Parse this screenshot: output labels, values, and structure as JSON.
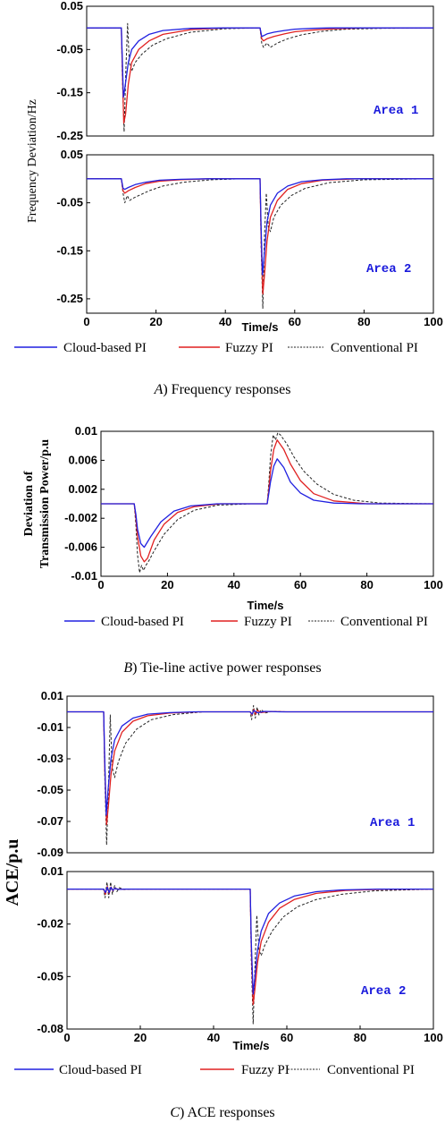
{
  "colors": {
    "cloud": "#2020e0",
    "fuzzy": "#e02020",
    "conventional": "#222222",
    "area_label": "#1a1adc"
  },
  "legend": {
    "cloud": "Cloud-based PI",
    "fuzzy": "Fuzzy PI",
    "conventional": "Conventional PI"
  },
  "captions": {
    "a_letter": "A",
    "a_text": ") Frequency responses",
    "b_letter": "B",
    "b_text": ") Tie-line active power responses",
    "c_letter": "C",
    "c_text": ") ACE responses"
  },
  "chart_data": [
    {
      "id": "a1",
      "type": "line",
      "xlim": [
        0,
        100
      ],
      "ylim": [
        -0.25,
        0.05
      ],
      "xticks": [],
      "yticks": [
        0.05,
        -0.05,
        -0.15,
        -0.25
      ],
      "ytick_labels": [
        "0.05",
        "-0.05",
        "-0.15",
        "-0.25"
      ],
      "annotation": "Area 1",
      "ylabel": "Frequency Deviation/Hz",
      "xlabel": "",
      "series": [
        {
          "key": "cloud",
          "x": [
            0,
            10,
            10.3,
            10.6,
            11,
            12,
            13,
            15,
            18,
            22,
            30,
            40,
            50,
            50.5,
            51,
            52,
            54,
            57,
            60,
            65,
            70,
            80,
            100
          ],
          "y": [
            0,
            0,
            -0.08,
            -0.16,
            -0.14,
            -0.08,
            -0.05,
            -0.03,
            -0.015,
            -0.006,
            -0.001,
            0,
            0,
            -0.02,
            -0.018,
            -0.014,
            -0.01,
            -0.006,
            -0.003,
            -0.001,
            0,
            0,
            0
          ]
        },
        {
          "key": "fuzzy",
          "x": [
            0,
            10,
            10.3,
            10.7,
            11.2,
            12,
            13,
            15,
            18,
            22,
            30,
            40,
            50,
            50.5,
            51,
            52,
            54,
            57,
            60,
            65,
            72,
            80,
            100
          ],
          "y": [
            0,
            0,
            -0.1,
            -0.22,
            -0.2,
            -0.13,
            -0.08,
            -0.05,
            -0.03,
            -0.015,
            -0.004,
            0,
            0,
            -0.025,
            -0.03,
            -0.025,
            -0.02,
            -0.014,
            -0.009,
            -0.005,
            -0.002,
            0,
            0
          ]
        },
        {
          "key": "conventional",
          "x": [
            0,
            10,
            10.3,
            10.8,
            11.3,
            11.8,
            12.3,
            13,
            14,
            16,
            19,
            23,
            30,
            40,
            50,
            50.5,
            51,
            52,
            53,
            55,
            58,
            62,
            68,
            75,
            85,
            100
          ],
          "y": [
            0,
            0,
            -0.12,
            -0.24,
            -0.1,
            0.01,
            -0.08,
            -0.1,
            -0.08,
            -0.06,
            -0.04,
            -0.025,
            -0.01,
            -0.002,
            0,
            -0.035,
            -0.045,
            -0.035,
            -0.045,
            -0.035,
            -0.025,
            -0.016,
            -0.008,
            -0.003,
            -0.001,
            0
          ]
        }
      ]
    },
    {
      "id": "a2",
      "type": "line",
      "xlim": [
        0,
        100
      ],
      "ylim": [
        -0.28,
        0.05
      ],
      "xticks": [
        0,
        20,
        40,
        60,
        80,
        100
      ],
      "yticks": [
        0.05,
        -0.05,
        -0.15,
        -0.25
      ],
      "ytick_labels": [
        "0.05",
        "-0.05",
        "-0.15",
        "-0.25"
      ],
      "annotation": "Area 2",
      "xlabel": "Time/s",
      "series": [
        {
          "key": "cloud",
          "x": [
            0,
            10,
            10.5,
            11,
            12,
            14,
            17,
            21,
            27,
            35,
            50,
            50.3,
            50.7,
            51.2,
            52,
            53,
            55,
            58,
            62,
            68,
            75,
            100
          ],
          "y": [
            0,
            0,
            -0.02,
            -0.022,
            -0.018,
            -0.012,
            -0.007,
            -0.003,
            -0.001,
            0,
            0,
            -0.1,
            -0.2,
            -0.16,
            -0.09,
            -0.055,
            -0.03,
            -0.015,
            -0.006,
            -0.002,
            0,
            0
          ]
        },
        {
          "key": "fuzzy",
          "x": [
            0,
            10,
            10.5,
            11,
            12,
            14,
            17,
            21,
            27,
            35,
            50,
            50.3,
            50.8,
            51.3,
            52,
            53,
            55,
            58,
            62,
            68,
            78,
            100
          ],
          "y": [
            0,
            0,
            -0.025,
            -0.03,
            -0.025,
            -0.018,
            -0.01,
            -0.005,
            -0.002,
            0,
            0,
            -0.12,
            -0.24,
            -0.2,
            -0.13,
            -0.08,
            -0.045,
            -0.022,
            -0.01,
            -0.003,
            0,
            0
          ]
        },
        {
          "key": "conventional",
          "x": [
            0,
            10,
            10.5,
            11,
            11.7,
            12.4,
            13.5,
            15,
            18,
            22,
            28,
            36,
            45,
            50,
            50.3,
            50.8,
            51.3,
            51.8,
            52.4,
            53,
            54,
            56,
            59,
            63,
            70,
            80,
            100
          ],
          "y": [
            0,
            0,
            -0.03,
            -0.05,
            -0.035,
            -0.045,
            -0.04,
            -0.035,
            -0.025,
            -0.015,
            -0.007,
            -0.002,
            0,
            0,
            -0.14,
            -0.27,
            -0.12,
            -0.03,
            -0.1,
            -0.11,
            -0.08,
            -0.055,
            -0.035,
            -0.02,
            -0.008,
            -0.002,
            0
          ]
        }
      ]
    },
    {
      "id": "b",
      "type": "line",
      "xlim": [
        0,
        100
      ],
      "ylim": [
        -0.01,
        0.01
      ],
      "xticks": [
        0,
        20,
        40,
        60,
        80,
        100
      ],
      "yticks": [
        0.01,
        0.006,
        0.002,
        -0.002,
        -0.006,
        -0.01
      ],
      "ytick_labels": [
        "0.01",
        "0.006",
        "0.002",
        "-0.002",
        "-0.006",
        "-0.01"
      ],
      "xlabel": "Time/s",
      "ylabel_line1": "Deviation of",
      "ylabel_line2": "Transmission Power/p.u",
      "series": [
        {
          "key": "cloud",
          "x": [
            0,
            10,
            10.5,
            11,
            12,
            13,
            15,
            18,
            22,
            27,
            35,
            50,
            50.5,
            51,
            52,
            53,
            55,
            57,
            60,
            64,
            70,
            78,
            100
          ],
          "y": [
            0,
            0,
            -0.0015,
            -0.0035,
            -0.0055,
            -0.006,
            -0.0045,
            -0.0025,
            -0.001,
            -0.0003,
            0,
            0,
            0.0015,
            0.003,
            0.0052,
            0.0062,
            0.005,
            0.003,
            0.0015,
            0.0005,
            0.0001,
            0,
            0
          ]
        },
        {
          "key": "fuzzy",
          "x": [
            0,
            10,
            10.5,
            11,
            12,
            13,
            14,
            16,
            19,
            23,
            28,
            36,
            50,
            50.5,
            51,
            52,
            53,
            55,
            57,
            60,
            64,
            70,
            80,
            100
          ],
          "y": [
            0,
            0,
            -0.002,
            -0.0045,
            -0.0072,
            -0.008,
            -0.0075,
            -0.005,
            -0.0028,
            -0.0012,
            -0.0004,
            0,
            0,
            0.002,
            0.0045,
            0.0075,
            0.0088,
            0.0075,
            0.0055,
            0.0032,
            0.0014,
            0.0004,
            0,
            0
          ]
        },
        {
          "key": "conventional",
          "x": [
            0,
            10,
            10.5,
            11,
            11.6,
            12.2,
            12.8,
            13.5,
            14.5,
            16,
            19,
            23,
            28,
            35,
            45,
            50,
            50.5,
            51,
            51.8,
            52.5,
            53.2,
            54,
            56,
            58,
            61,
            65,
            70,
            76,
            84,
            100
          ],
          "y": [
            0,
            0,
            -0.003,
            -0.007,
            -0.0095,
            -0.0085,
            -0.0092,
            -0.0085,
            -0.0078,
            -0.0065,
            -0.0042,
            -0.0022,
            -0.0009,
            -0.0002,
            0,
            0,
            0.003,
            0.0065,
            0.0095,
            0.0088,
            0.0098,
            0.0095,
            0.0082,
            0.0065,
            0.0045,
            0.0027,
            0.0013,
            0.0005,
            0.0001,
            0
          ]
        }
      ]
    },
    {
      "id": "c1",
      "type": "line",
      "xlim": [
        0,
        100
      ],
      "ylim": [
        -0.09,
        0.01
      ],
      "xticks": [],
      "yticks": [
        0.01,
        -0.01,
        -0.03,
        -0.05,
        -0.07,
        -0.09
      ],
      "ytick_labels": [
        "0.01",
        "-0.01",
        "-0.03",
        "-0.05",
        "-0.07",
        "-0.09"
      ],
      "annotation": "Area 1",
      "ylabel": "ACE/p.u",
      "xlabel": "",
      "series": [
        {
          "key": "cloud",
          "x": [
            0,
            10,
            10.3,
            10.7,
            11.2,
            12,
            13,
            15,
            18,
            22,
            28,
            35,
            50,
            50.5,
            51,
            52,
            54,
            58,
            100
          ],
          "y": [
            0,
            0,
            -0.03,
            -0.066,
            -0.05,
            -0.03,
            -0.018,
            -0.009,
            -0.004,
            -0.0015,
            -0.0005,
            0,
            0,
            -0.0015,
            0.0008,
            -0.0006,
            0.0003,
            0,
            0
          ]
        },
        {
          "key": "fuzzy",
          "x": [
            0,
            10,
            10.3,
            10.8,
            11.3,
            12,
            13,
            15,
            18,
            22,
            28,
            36,
            50,
            50.5,
            51,
            51.5,
            52,
            53,
            55,
            60,
            100
          ],
          "y": [
            0,
            0,
            -0.035,
            -0.072,
            -0.06,
            -0.04,
            -0.025,
            -0.013,
            -0.006,
            -0.0025,
            -0.0008,
            0,
            0,
            -0.002,
            0.0015,
            -0.0015,
            0.001,
            -0.0005,
            0.0002,
            0,
            0
          ]
        },
        {
          "key": "conventional",
          "x": [
            0,
            10,
            10.3,
            10.8,
            11.3,
            11.8,
            12.3,
            13,
            14,
            16,
            19,
            23,
            29,
            37,
            50,
            50.4,
            50.9,
            51.4,
            51.9,
            52.4,
            53,
            54,
            56,
            60,
            100
          ],
          "y": [
            0,
            0,
            -0.04,
            -0.085,
            -0.05,
            -0.002,
            -0.035,
            -0.042,
            -0.032,
            -0.02,
            -0.011,
            -0.005,
            -0.0018,
            0,
            0,
            -0.005,
            0.004,
            -0.004,
            0.003,
            -0.002,
            0.0015,
            -0.0008,
            0.0003,
            0,
            0
          ]
        }
      ]
    },
    {
      "id": "c2",
      "type": "line",
      "xlim": [
        0,
        100
      ],
      "ylim": [
        -0.08,
        0.01
      ],
      "xticks": [
        0,
        20,
        40,
        60,
        80,
        100
      ],
      "yticks": [
        0.01,
        -0.02,
        -0.05,
        -0.08
      ],
      "ytick_labels": [
        "0.01",
        "-0.02",
        "-0.05",
        "-0.08"
      ],
      "annotation": "Area 2",
      "xlabel": "Time/s",
      "series": [
        {
          "key": "cloud",
          "x": [
            0,
            10,
            10.5,
            11,
            11.5,
            12,
            12.5,
            13,
            14,
            16,
            20,
            50,
            50.3,
            50.8,
            51.3,
            52,
            53,
            55,
            58,
            62,
            68,
            75,
            85,
            100
          ],
          "y": [
            0,
            0,
            -0.002,
            0.001,
            -0.002,
            0.001,
            -0.0008,
            0.0004,
            -0.0002,
            0,
            0,
            0,
            -0.03,
            -0.06,
            -0.05,
            -0.035,
            -0.024,
            -0.014,
            -0.008,
            -0.004,
            -0.0015,
            -0.0005,
            0,
            0
          ]
        },
        {
          "key": "fuzzy",
          "x": [
            0,
            10,
            10.5,
            11,
            11.5,
            12,
            12.5,
            13,
            14,
            16,
            20,
            50,
            50.3,
            50.8,
            51.3,
            52,
            53,
            55,
            58,
            62,
            68,
            76,
            86,
            100
          ],
          "y": [
            0,
            0,
            -0.003,
            0.0015,
            -0.0025,
            0.0012,
            -0.001,
            0.0005,
            -0.0002,
            0,
            0,
            0,
            -0.033,
            -0.066,
            -0.057,
            -0.042,
            -0.03,
            -0.019,
            -0.011,
            -0.006,
            -0.0025,
            -0.0008,
            -0.0001,
            0
          ]
        },
        {
          "key": "conventional",
          "x": [
            0,
            10,
            10.4,
            10.9,
            11.4,
            11.9,
            12.4,
            13,
            13.6,
            14.3,
            15.5,
            18,
            50,
            50.3,
            50.8,
            51.3,
            51.8,
            52.4,
            53,
            54,
            56,
            59,
            63,
            68,
            75,
            84,
            100
          ],
          "y": [
            0,
            0,
            -0.005,
            0.004,
            -0.005,
            0.004,
            -0.003,
            0.002,
            -0.0015,
            0.0008,
            -0.0003,
            0,
            0,
            -0.04,
            -0.077,
            -0.045,
            -0.015,
            -0.035,
            -0.038,
            -0.032,
            -0.024,
            -0.016,
            -0.01,
            -0.006,
            -0.003,
            -0.001,
            0
          ]
        }
      ]
    }
  ]
}
